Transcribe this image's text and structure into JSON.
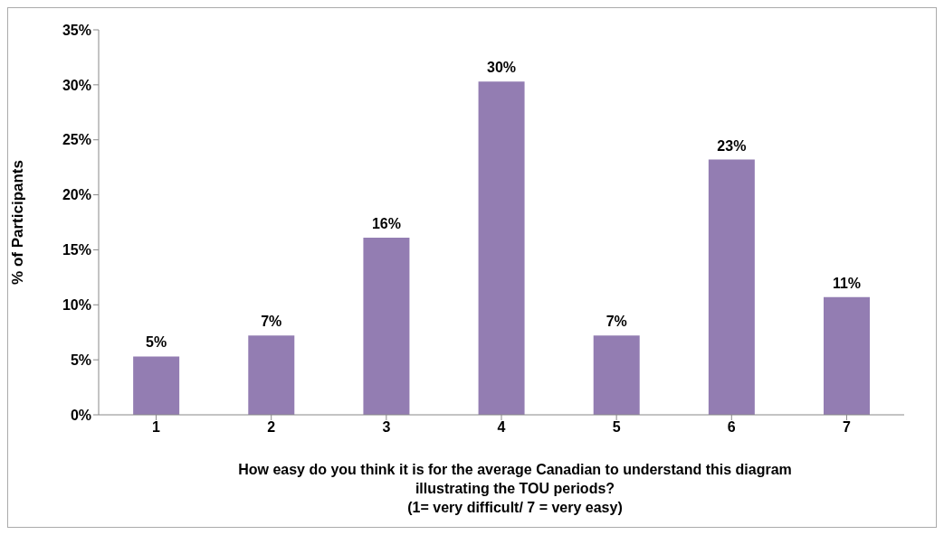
{
  "chart_data": {
    "type": "bar",
    "categories": [
      "1",
      "2",
      "3",
      "4",
      "5",
      "6",
      "7"
    ],
    "values": [
      5.3,
      7.2,
      16.1,
      30.3,
      7.2,
      23.2,
      10.7
    ],
    "value_labels": [
      "5%",
      "7%",
      "16%",
      "30%",
      "7%",
      "23%",
      "11%"
    ],
    "color": "#937db2",
    "ylabel": "% of Participants",
    "xlabel": "How easy do you think it is for the average Canadian to understand this diagram\nillustrating the TOU periods?\n(1= very difficult/ 7 = very easy)",
    "ylim": [
      0,
      35
    ],
    "yticks": [
      {
        "value": 0,
        "label": "0%"
      },
      {
        "value": 5,
        "label": "5%"
      },
      {
        "value": 10,
        "label": "10%"
      },
      {
        "value": 15,
        "label": "15%"
      },
      {
        "value": 20,
        "label": "20%"
      },
      {
        "value": 25,
        "label": "25%"
      },
      {
        "value": 30,
        "label": "30%"
      },
      {
        "value": 35,
        "label": "35%"
      }
    ],
    "grid": false,
    "legend": false
  }
}
